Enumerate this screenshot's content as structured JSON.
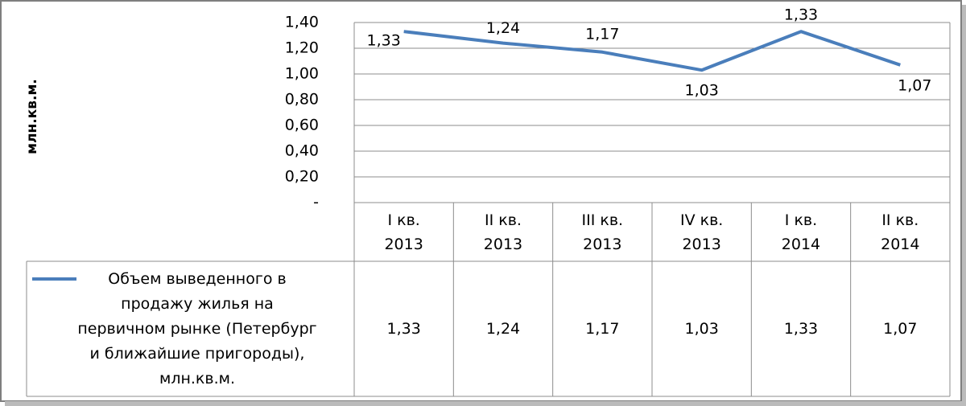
{
  "chart_data": {
    "type": "line",
    "y_label": "млн.кв.м.",
    "categories": [
      "I кв. 2013",
      "II кв. 2013",
      "III кв. 2013",
      "IV кв. 2013",
      "I кв. 2014",
      "II кв. 2014"
    ],
    "series": [
      {
        "name": "Объем выведенного в продажу жилья на первичном рынке (Петербург и ближайшие пригороды), млн.кв.м.",
        "color": "#4a7ebb",
        "values": [
          1.33,
          1.24,
          1.17,
          1.03,
          1.33,
          1.07
        ],
        "value_labels": [
          "1,33",
          "1,24",
          "1,17",
          "1,03",
          "1,33",
          "1,07"
        ]
      }
    ],
    "ylim": [
      0,
      1.4
    ],
    "yticks": [
      {
        "value": 0,
        "label": "-"
      },
      {
        "value": 0.2,
        "label": "0,20"
      },
      {
        "value": 0.4,
        "label": "0,40"
      },
      {
        "value": 0.6,
        "label": "0,60"
      },
      {
        "value": 0.8,
        "label": "0,80"
      },
      {
        "value": 1.0,
        "label": "1,00"
      },
      {
        "value": 1.2,
        "label": "1,20"
      },
      {
        "value": 1.4,
        "label": "1,40"
      }
    ],
    "grid": true,
    "data_table": true
  }
}
